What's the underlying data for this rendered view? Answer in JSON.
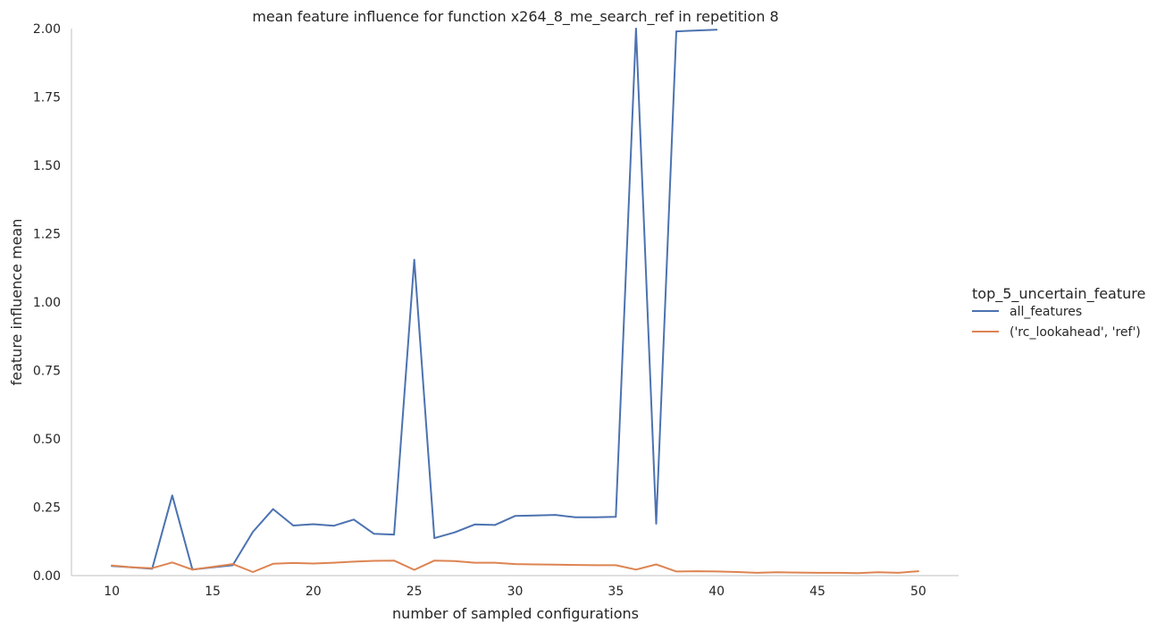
{
  "chart_data": {
    "type": "line",
    "title": "mean feature influence for function x264_8_me_search_ref in repetition 8",
    "xlabel": "number of sampled configurations",
    "ylabel": "feature influence mean",
    "xlim": [
      8,
      52
    ],
    "ylim": [
      0,
      2.0
    ],
    "xticks": [
      10,
      15,
      20,
      25,
      30,
      35,
      40,
      45,
      50
    ],
    "xtick_labels": [
      "10",
      "15",
      "20",
      "25",
      "30",
      "35",
      "40",
      "45",
      "50"
    ],
    "yticks": [
      0,
      0.25,
      0.5,
      0.75,
      1.0,
      1.25,
      1.5,
      1.75,
      2.0
    ],
    "ytick_labels": [
      "0.00",
      "0.25",
      "0.50",
      "0.75",
      "1.00",
      "1.25",
      "1.50",
      "1.75",
      "2.00"
    ],
    "grid": false,
    "legend": {
      "title": "top_5_uncertain_feature",
      "placement": "right-center"
    },
    "series": [
      {
        "name": "all_features",
        "color": "#4c72b0",
        "x": [
          10,
          11,
          12,
          13,
          14,
          15,
          16,
          17,
          18,
          19,
          20,
          21,
          22,
          23,
          24,
          25,
          26,
          27,
          28,
          29,
          30,
          31,
          32,
          33,
          34,
          35,
          36,
          37,
          38,
          39,
          40
        ],
        "y": [
          0.035,
          0.03,
          0.025,
          0.293,
          0.022,
          0.03,
          0.038,
          0.16,
          0.243,
          0.183,
          0.188,
          0.182,
          0.205,
          0.153,
          0.15,
          1.155,
          0.137,
          0.158,
          0.187,
          0.185,
          0.218,
          0.22,
          0.222,
          0.213,
          0.213,
          0.215,
          2.0,
          0.19,
          1.99,
          1.993,
          1.996
        ]
      },
      {
        "name": "('rc_lookahead', 'ref')",
        "color": "#dd8452",
        "x": [
          10,
          11,
          12,
          13,
          14,
          15,
          16,
          17,
          18,
          19,
          20,
          21,
          22,
          23,
          24,
          25,
          26,
          27,
          28,
          29,
          30,
          31,
          32,
          33,
          34,
          35,
          36,
          37,
          38,
          39,
          40,
          41,
          42,
          43,
          44,
          45,
          46,
          47,
          48,
          49,
          50
        ],
        "y": [
          0.037,
          0.03,
          0.027,
          0.048,
          0.022,
          0.032,
          0.042,
          0.013,
          0.043,
          0.046,
          0.044,
          0.047,
          0.051,
          0.054,
          0.055,
          0.021,
          0.055,
          0.053,
          0.047,
          0.047,
          0.042,
          0.041,
          0.04,
          0.039,
          0.038,
          0.038,
          0.022,
          0.041,
          0.015,
          0.016,
          0.015,
          0.013,
          0.01,
          0.012,
          0.011,
          0.01,
          0.01,
          0.009,
          0.012,
          0.01,
          0.016
        ]
      }
    ]
  }
}
